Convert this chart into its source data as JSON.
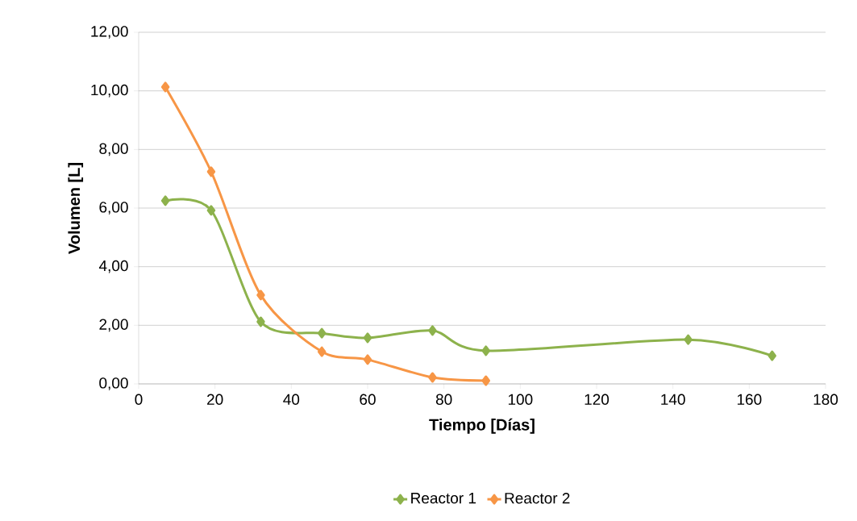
{
  "chart_data": {
    "type": "line",
    "xlabel": "Tiempo [Días]",
    "ylabel": "Volumen [L]",
    "series": [
      {
        "name": "Reactor 1",
        "color": "#8db24c",
        "x": [
          7,
          19,
          32,
          48,
          60,
          77,
          91,
          144,
          166
        ],
        "values": [
          6.25,
          5.92,
          2.12,
          1.73,
          1.57,
          1.82,
          1.13,
          1.51,
          0.96
        ]
      },
      {
        "name": "Reactor 2",
        "color": "#f79646",
        "x": [
          7,
          19,
          32,
          48,
          60,
          77,
          91
        ],
        "values": [
          10.13,
          7.24,
          3.03,
          1.1,
          0.83,
          0.22,
          0.11
        ]
      }
    ],
    "xlim": [
      0,
      180
    ],
    "xticks": [
      0,
      20,
      40,
      60,
      80,
      100,
      120,
      140,
      160,
      180
    ],
    "ylim": [
      0,
      12
    ],
    "yticks": [
      {
        "value": 0,
        "label": "0,00"
      },
      {
        "value": 2,
        "label": "2,00"
      },
      {
        "value": 4,
        "label": "4,00"
      },
      {
        "value": 6,
        "label": "6,00"
      },
      {
        "value": 8,
        "label": "8,00"
      },
      {
        "value": 10,
        "label": "10,00"
      },
      {
        "value": 12,
        "label": "12,00"
      }
    ],
    "grid": "y",
    "legend": "bottom",
    "marker": "diamond",
    "line_style": "solid"
  }
}
